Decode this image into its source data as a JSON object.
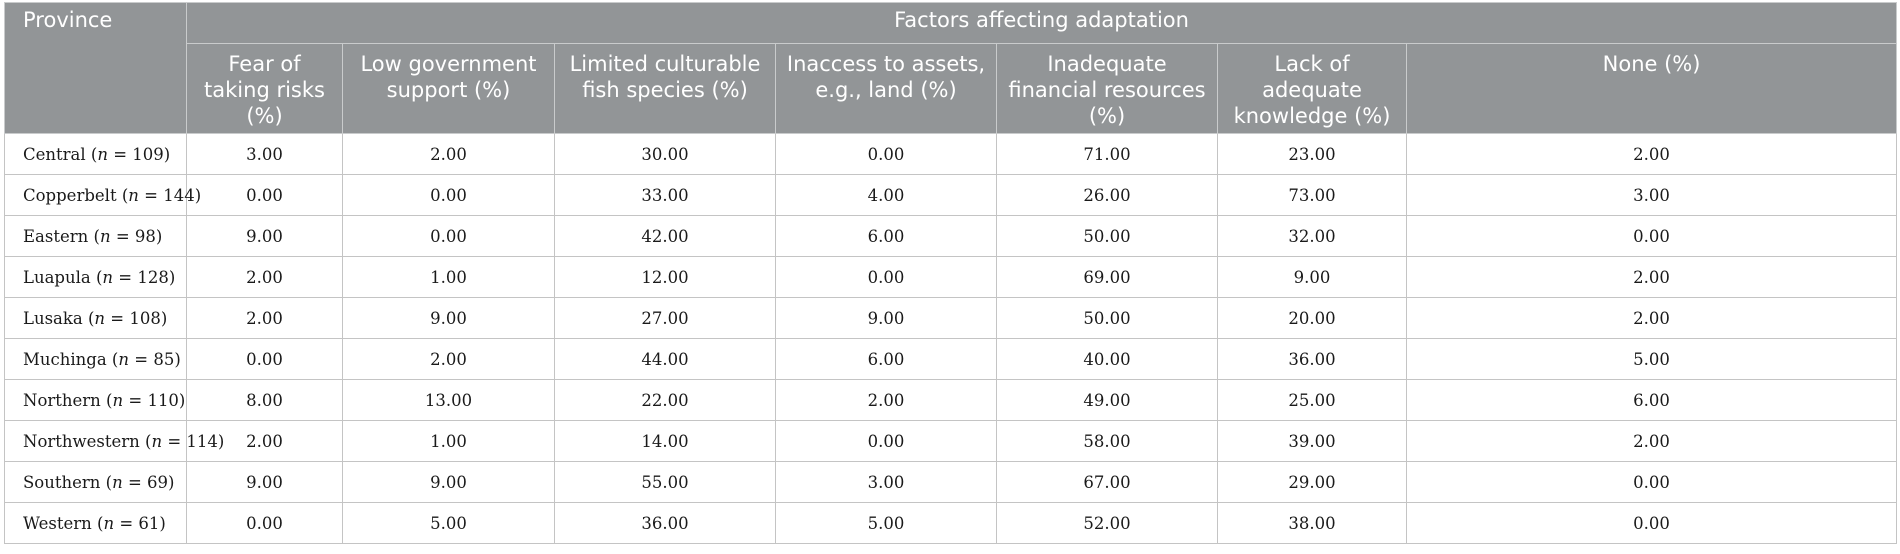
{
  "table": {
    "province_header": "Province",
    "group_header": "Factors affecting adaptation",
    "columns": [
      "Fear of taking risks (%)",
      "Low government support (%)",
      "Limited culturable fish species (%)",
      "Inaccess to assets, e.g., land (%)",
      "Inadequate financial resources (%)",
      "Lack of adequate knowledge (%)",
      "None (%)"
    ],
    "rows": [
      {
        "name": "Central (",
        "n_label": "n",
        "n_value": " = 109)",
        "values": [
          "3.00",
          "2.00",
          "30.00",
          "0.00",
          "71.00",
          "23.00",
          "2.00"
        ]
      },
      {
        "name": "Copperbelt (",
        "n_label": "n",
        "n_value": " = 144)",
        "values": [
          "0.00",
          "0.00",
          "33.00",
          "4.00",
          "26.00",
          "73.00",
          "3.00"
        ]
      },
      {
        "name": "Eastern (",
        "n_label": "n",
        "n_value": " = 98)",
        "values": [
          "9.00",
          "0.00",
          "42.00",
          "6.00",
          "50.00",
          "32.00",
          "0.00"
        ]
      },
      {
        "name": "Luapula (",
        "n_label": "n",
        "n_value": " = 128)",
        "values": [
          "2.00",
          "1.00",
          "12.00",
          "0.00",
          "69.00",
          "9.00",
          "2.00"
        ]
      },
      {
        "name": "Lusaka (",
        "n_label": "n",
        "n_value": " = 108)",
        "values": [
          "2.00",
          "9.00",
          "27.00",
          "9.00",
          "50.00",
          "20.00",
          "2.00"
        ]
      },
      {
        "name": "Muchinga (",
        "n_label": "n",
        "n_value": " = 85)",
        "values": [
          "0.00",
          "2.00",
          "44.00",
          "6.00",
          "40.00",
          "36.00",
          "5.00"
        ]
      },
      {
        "name": "Northern (",
        "n_label": "n",
        "n_value": " = 110)",
        "values": [
          "8.00",
          "13.00",
          "22.00",
          "2.00",
          "49.00",
          "25.00",
          "6.00"
        ]
      },
      {
        "name": "Northwestern (",
        "n_label": "n",
        "n_value": " = 114)",
        "values": [
          "2.00",
          "1.00",
          "14.00",
          "0.00",
          "58.00",
          "39.00",
          "2.00"
        ]
      },
      {
        "name": "Southern (",
        "n_label": "n",
        "n_value": " = 69)",
        "values": [
          "9.00",
          "9.00",
          "55.00",
          "3.00",
          "67.00",
          "29.00",
          "0.00"
        ]
      },
      {
        "name": "Western (",
        "n_label": "n",
        "n_value": " = 61)",
        "values": [
          "0.00",
          "5.00",
          "36.00",
          "5.00",
          "52.00",
          "38.00",
          "0.00"
        ]
      }
    ]
  }
}
